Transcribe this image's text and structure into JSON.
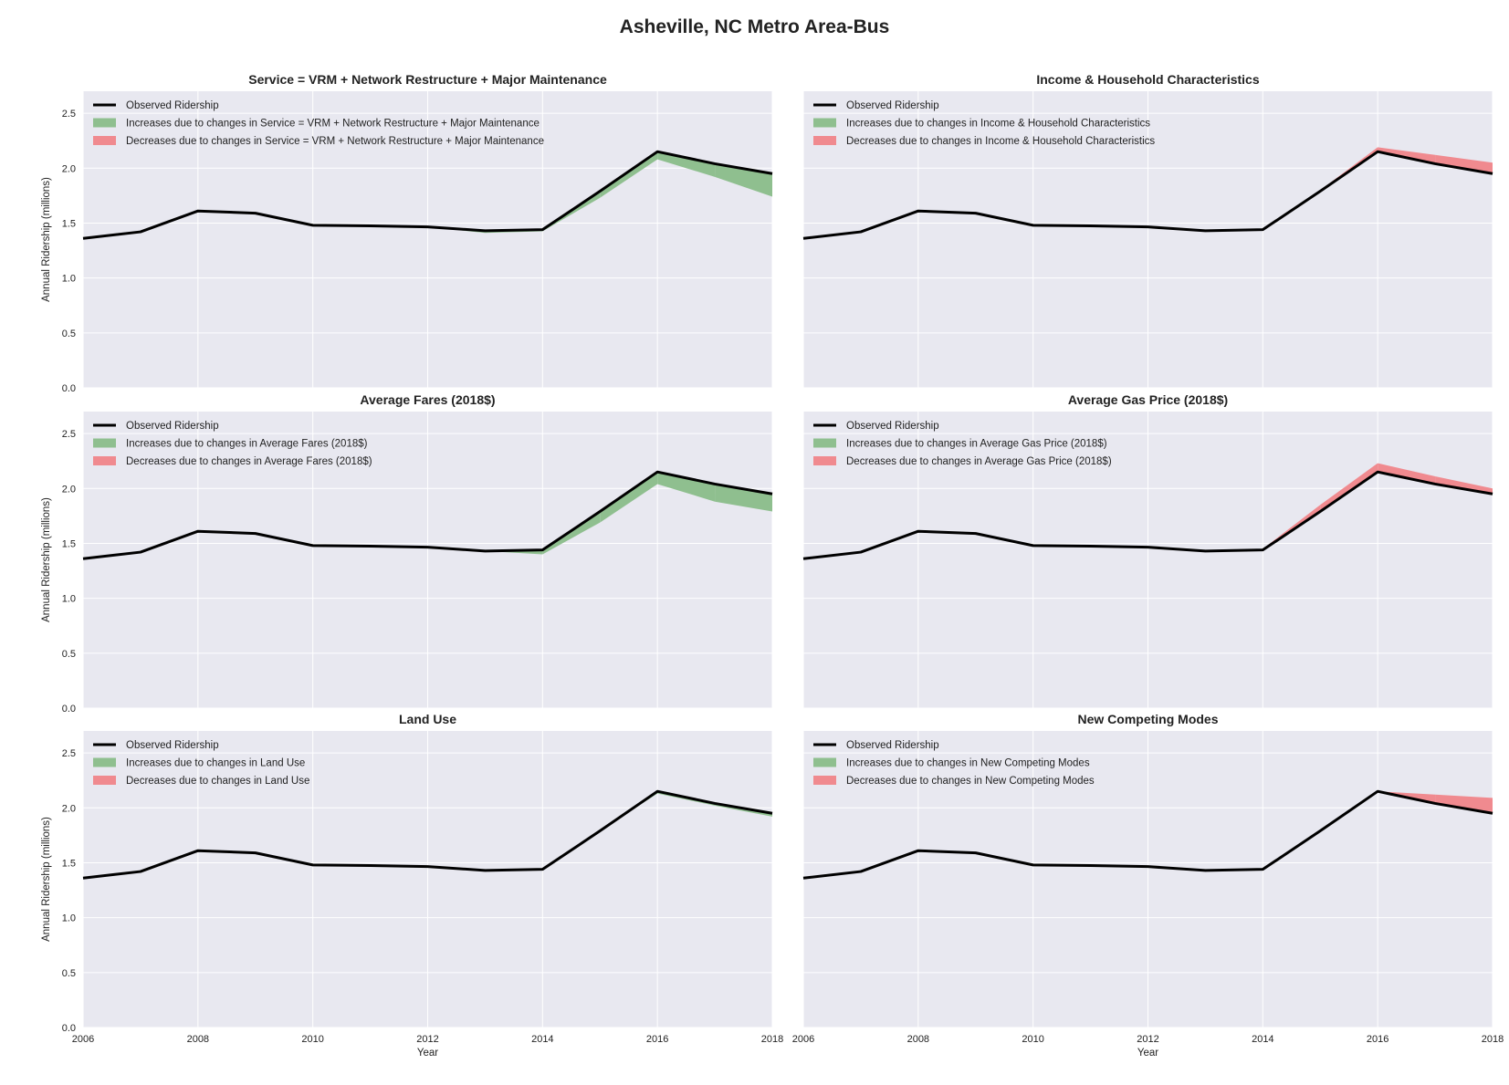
{
  "figure_title": "Asheville, NC Metro Area-Bus",
  "colors": {
    "observed": "#000000",
    "increase": "#8fbf8f",
    "decrease": "#f08a8f",
    "panel_bg": "#e8e8f0",
    "grid": "#ffffff"
  },
  "chart_data": [
    {
      "type": "area",
      "title": "Service = VRM + Network Restructure + Major Maintenance",
      "xlabel": "",
      "ylabel": "Annual Ridership (millions)",
      "xlim": [
        2006,
        2018
      ],
      "ylim": [
        0,
        2.7
      ],
      "xticks": [],
      "yticks": [
        "0.0",
        "0.5",
        "1.0",
        "1.5",
        "2.0",
        "2.5"
      ],
      "legend": [
        "Observed Ridership",
        "Increases due to changes in Service = VRM + Network Restructure + Major Maintenance",
        "Decreases due to changes in Service = VRM + Network Restructure + Major Maintenance"
      ],
      "legend_position": "top-left",
      "x": [
        2006,
        2007,
        2008,
        2009,
        2010,
        2011,
        2012,
        2013,
        2014,
        2015,
        2016,
        2017,
        2018
      ],
      "observed": [
        1.36,
        1.42,
        1.61,
        1.59,
        1.48,
        1.475,
        1.465,
        1.43,
        1.44,
        1.79,
        2.15,
        2.04,
        1.95
      ],
      "counterfactual": [
        1.36,
        1.42,
        1.61,
        1.59,
        1.48,
        1.475,
        1.465,
        1.41,
        1.425,
        1.73,
        2.08,
        1.92,
        1.74
      ]
    },
    {
      "type": "area",
      "title": "Income & Household Characteristics",
      "xlabel": "",
      "ylabel": "",
      "xlim": [
        2006,
        2018
      ],
      "ylim": [
        0,
        2.7
      ],
      "xticks": [],
      "yticks": [],
      "legend": [
        "Observed Ridership",
        "Increases due to changes in Income & Household Characteristics",
        "Decreases due to changes in Income & Household Characteristics"
      ],
      "legend_position": "top-left",
      "x": [
        2006,
        2007,
        2008,
        2009,
        2010,
        2011,
        2012,
        2013,
        2014,
        2015,
        2016,
        2017,
        2018
      ],
      "observed": [
        1.36,
        1.42,
        1.61,
        1.59,
        1.48,
        1.475,
        1.465,
        1.43,
        1.44,
        1.79,
        2.15,
        2.04,
        1.95
      ],
      "counterfactual": [
        1.36,
        1.42,
        1.61,
        1.59,
        1.48,
        1.475,
        1.465,
        1.43,
        1.44,
        1.8,
        2.19,
        2.12,
        2.05
      ]
    },
    {
      "type": "area",
      "title": "Average Fares (2018$)",
      "xlabel": "",
      "ylabel": "Annual Ridership (millions)",
      "xlim": [
        2006,
        2018
      ],
      "ylim": [
        0,
        2.7
      ],
      "xticks": [],
      "yticks": [
        "0.0",
        "0.5",
        "1.0",
        "1.5",
        "2.0",
        "2.5"
      ],
      "legend": [
        "Observed Ridership",
        "Increases due to changes in Average Fares (2018$)",
        "Decreases due to changes in Average Fares (2018$)"
      ],
      "legend_position": "top-left",
      "x": [
        2006,
        2007,
        2008,
        2009,
        2010,
        2011,
        2012,
        2013,
        2014,
        2015,
        2016,
        2017,
        2018
      ],
      "observed": [
        1.36,
        1.42,
        1.61,
        1.59,
        1.48,
        1.475,
        1.465,
        1.43,
        1.44,
        1.79,
        2.15,
        2.04,
        1.95
      ],
      "counterfactual": [
        1.36,
        1.42,
        1.61,
        1.59,
        1.48,
        1.475,
        1.465,
        1.43,
        1.4,
        1.69,
        2.04,
        1.88,
        1.79
      ]
    },
    {
      "type": "area",
      "title": "Average Gas Price (2018$)",
      "xlabel": "",
      "ylabel": "",
      "xlim": [
        2006,
        2018
      ],
      "ylim": [
        0,
        2.7
      ],
      "xticks": [],
      "yticks": [],
      "legend": [
        "Observed Ridership",
        "Increases due to changes in Average Gas Price (2018$)",
        "Decreases due to changes in Average Gas Price (2018$)"
      ],
      "legend_position": "top-left",
      "x": [
        2006,
        2007,
        2008,
        2009,
        2010,
        2011,
        2012,
        2013,
        2014,
        2015,
        2016,
        2017,
        2018
      ],
      "observed": [
        1.36,
        1.42,
        1.61,
        1.59,
        1.48,
        1.475,
        1.465,
        1.43,
        1.44,
        1.79,
        2.15,
        2.04,
        1.95
      ],
      "counterfactual": [
        1.36,
        1.42,
        1.61,
        1.59,
        1.48,
        1.475,
        1.465,
        1.43,
        1.45,
        1.85,
        2.23,
        2.11,
        2.0
      ]
    },
    {
      "type": "area",
      "title": "Land Use",
      "xlabel": "Year",
      "ylabel": "Annual Ridership (millions)",
      "xlim": [
        2006,
        2018
      ],
      "ylim": [
        0,
        2.7
      ],
      "xticks": [
        "2006",
        "2008",
        "2010",
        "2012",
        "2014",
        "2016",
        "2018"
      ],
      "yticks": [
        "0.0",
        "0.5",
        "1.0",
        "1.5",
        "2.0",
        "2.5"
      ],
      "legend": [
        "Observed Ridership",
        "Increases due to changes in Land Use",
        "Decreases due to changes in Land Use"
      ],
      "legend_position": "top-left",
      "x": [
        2006,
        2007,
        2008,
        2009,
        2010,
        2011,
        2012,
        2013,
        2014,
        2015,
        2016,
        2017,
        2018
      ],
      "observed": [
        1.36,
        1.42,
        1.61,
        1.59,
        1.48,
        1.475,
        1.465,
        1.43,
        1.44,
        1.79,
        2.15,
        2.04,
        1.95
      ],
      "counterfactual": [
        1.36,
        1.42,
        1.61,
        1.59,
        1.48,
        1.475,
        1.465,
        1.43,
        1.44,
        1.79,
        2.13,
        2.02,
        1.92
      ]
    },
    {
      "type": "area",
      "title": "New Competing Modes",
      "xlabel": "Year",
      "ylabel": "",
      "xlim": [
        2006,
        2018
      ],
      "ylim": [
        0,
        2.7
      ],
      "xticks": [
        "2006",
        "2008",
        "2010",
        "2012",
        "2014",
        "2016",
        "2018"
      ],
      "yticks": [],
      "legend": [
        "Observed Ridership",
        "Increases due to changes in New Competing Modes",
        "Decreases due to changes in New Competing Modes"
      ],
      "legend_position": "top-left",
      "x": [
        2006,
        2007,
        2008,
        2009,
        2010,
        2011,
        2012,
        2013,
        2014,
        2015,
        2016,
        2017,
        2018
      ],
      "observed": [
        1.36,
        1.42,
        1.61,
        1.59,
        1.48,
        1.475,
        1.465,
        1.43,
        1.44,
        1.79,
        2.15,
        2.04,
        1.95
      ],
      "counterfactual": [
        1.36,
        1.42,
        1.61,
        1.59,
        1.48,
        1.475,
        1.465,
        1.43,
        1.44,
        1.79,
        2.15,
        2.12,
        2.09
      ]
    }
  ]
}
